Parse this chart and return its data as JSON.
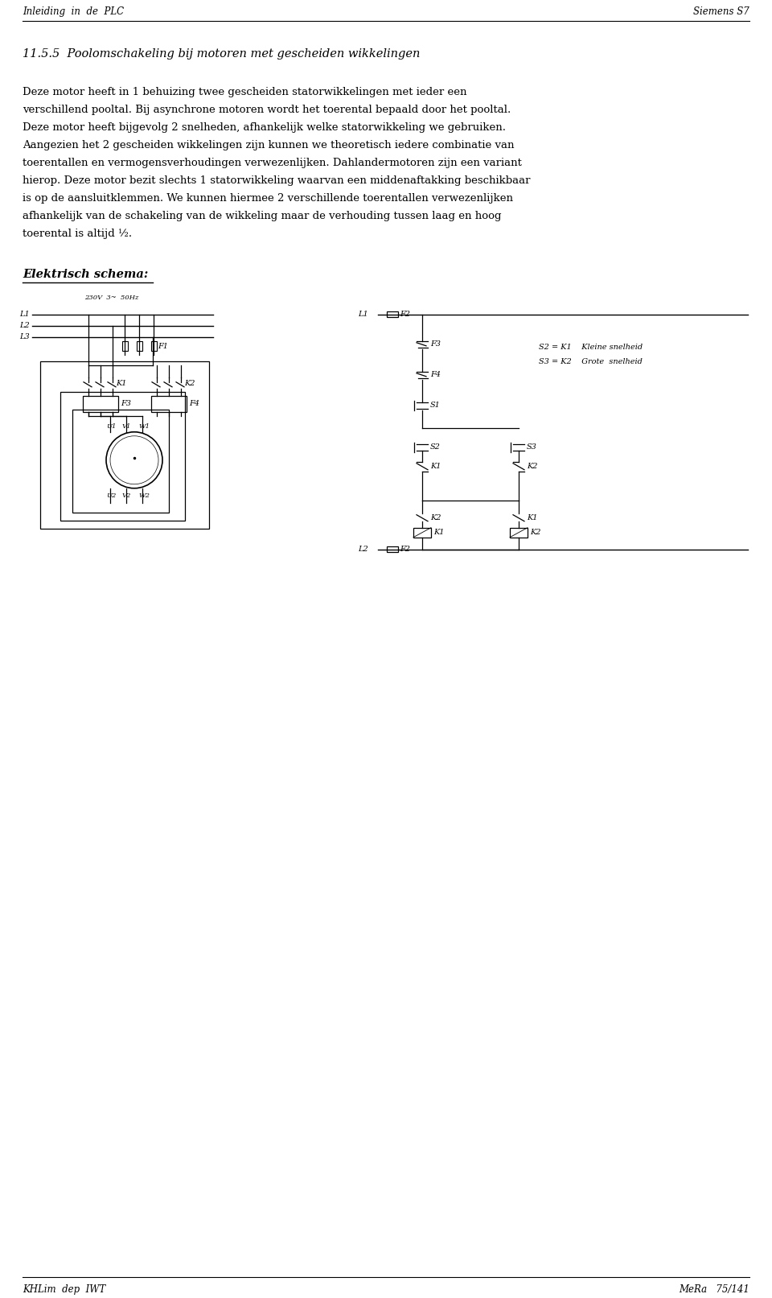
{
  "header_left": "Inleiding  in  de  PLC",
  "header_right": "Siemens S7",
  "footer_left": "KHLim  dep  IWT",
  "footer_right": "MeRa   75/141",
  "section_title": "11.5.5  Poolomschakeling bij motoren met gescheiden wikkelingen",
  "body_text": [
    "Deze motor heeft in 1 behuizing twee gescheiden statorwikkelingen met ieder een",
    "verschillend pooltal. Bij asynchrone motoren wordt het toerental bepaald door het pooltal.",
    "Deze motor heeft bijgevolg 2 snelheden, afhankelijk welke statorwikkeling we gebruiken.",
    "Aangezien het 2 gescheiden wikkelingen zijn kunnen we theoretisch iedere combinatie van",
    "toerentallen en vermogensverhoudingen verwezenlijken. Dahlandermotoren zijn een variant",
    "hierop. Deze motor bezit slechts 1 statorwikkeling waarvan een middenaftakking beschikbaar",
    "is op de aansluitklemmen. We kunnen hiermee 2 verschillende toerentallen verwezenlijken",
    "afhankelijk van de schakeling van de wikkeling maar de verhouding tussen laag en hoog",
    "toerental is altijd ½."
  ],
  "elektrisch_schema_label": "Elektrisch schema:",
  "bg_color": "#ffffff",
  "text_color": "#000000",
  "font_size_header": 8.5,
  "font_size_body": 9.5,
  "font_size_section": 10.5,
  "font_size_diagram": 7
}
